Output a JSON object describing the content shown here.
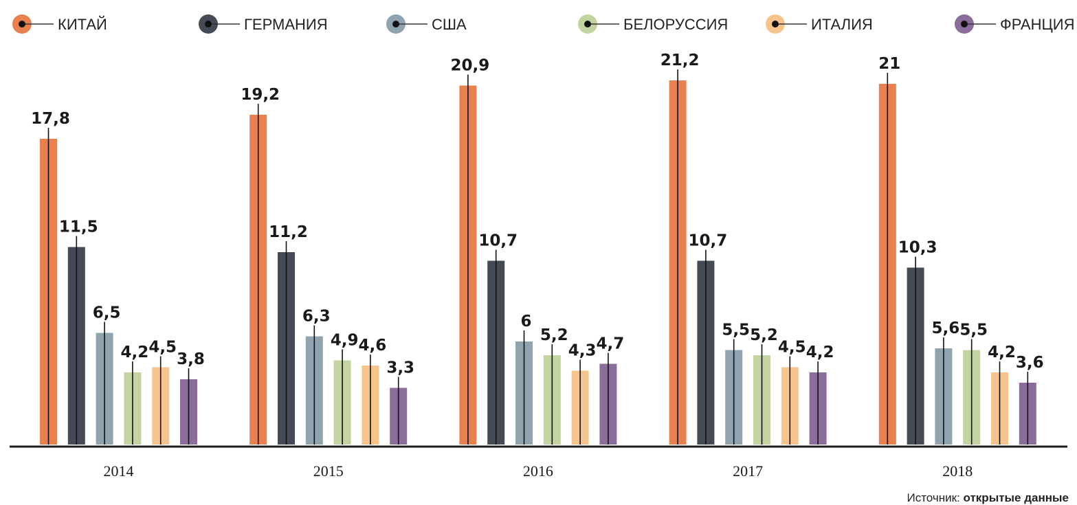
{
  "chart_data": {
    "type": "bar",
    "categories": [
      "2014",
      "2015",
      "2016",
      "2017",
      "2018"
    ],
    "series": [
      {
        "name": "КИТАЙ",
        "color": "#E8804F",
        "values": [
          17.8,
          19.2,
          20.9,
          21.2,
          21
        ],
        "labels": [
          "17,8",
          "19,2",
          "20,9",
          "21,2",
          "21"
        ]
      },
      {
        "name": "ГЕРМАНИЯ",
        "color": "#454B55",
        "values": [
          11.5,
          11.2,
          10.7,
          10.7,
          10.3
        ],
        "labels": [
          "11,5",
          "11,2",
          "10,7",
          "10,7",
          "10,3"
        ]
      },
      {
        "name": "США",
        "color": "#8FA4AE",
        "values": [
          6.5,
          6.3,
          6,
          5.5,
          5.6
        ],
        "labels": [
          "6,5",
          "6,3",
          "6",
          "5,5",
          "5,6"
        ]
      },
      {
        "name": "БЕЛОРУССИЯ",
        "color": "#C4D4A0",
        "values": [
          4.2,
          4.9,
          5.2,
          5.2,
          5.5
        ],
        "labels": [
          "4,2",
          "4,9",
          "5,2",
          "5,2",
          "5,5"
        ]
      },
      {
        "name": "ИТАЛИЯ",
        "color": "#F7C48D",
        "values": [
          4.5,
          4.6,
          4.3,
          4.5,
          4.2
        ],
        "labels": [
          "4,5",
          "4,6",
          "4,3",
          "4,5",
          "4,2"
        ]
      },
      {
        "name": "ФРАНЦИЯ",
        "color": "#8A6D9A",
        "values": [
          3.8,
          3.3,
          4.7,
          4.2,
          3.6
        ],
        "labels": [
          "3,8",
          "3,3",
          "4,7",
          "4,2",
          "3,6"
        ]
      }
    ],
    "legend_position": "top",
    "grid": false
  },
  "source": {
    "prefix": "Источник:",
    "name": "открытые данные"
  }
}
